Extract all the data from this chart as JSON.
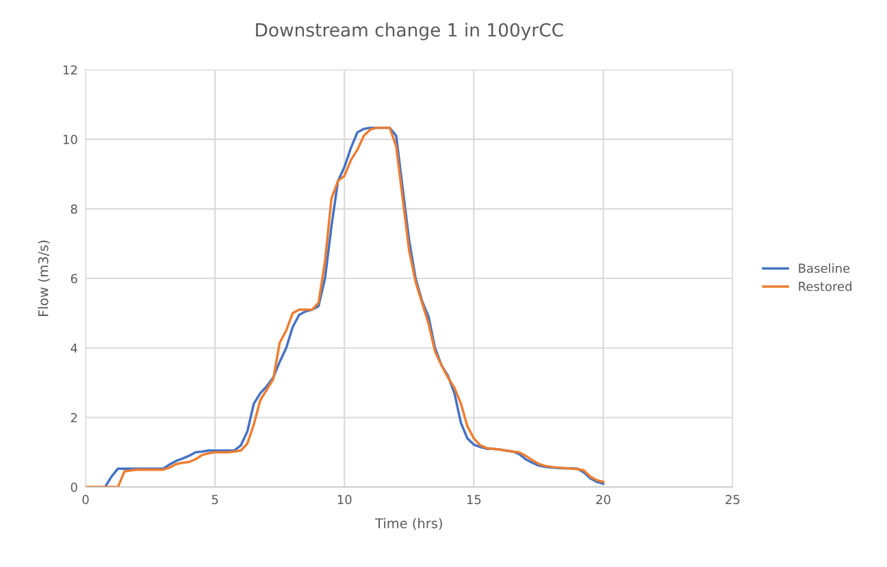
{
  "chart_data": {
    "type": "line",
    "title": "Downstream change 1 in 100yrCC",
    "xlabel": "Time (hrs)",
    "ylabel": "Flow (m3/s)",
    "x": [
      0,
      0.25,
      0.5,
      0.75,
      1,
      1.25,
      1.5,
      1.75,
      2,
      2.25,
      2.5,
      2.75,
      3,
      3.25,
      3.5,
      3.75,
      4,
      4.25,
      4.5,
      4.75,
      5,
      5.25,
      5.5,
      5.75,
      6,
      6.25,
      6.5,
      6.75,
      7,
      7.25,
      7.5,
      7.75,
      8,
      8.25,
      8.5,
      8.75,
      9,
      9.25,
      9.5,
      9.75,
      10,
      10.25,
      10.5,
      10.75,
      11,
      11.25,
      11.5,
      11.75,
      12,
      12.25,
      12.5,
      12.75,
      13,
      13.25,
      13.5,
      13.75,
      14,
      14.25,
      14.5,
      14.75,
      15,
      15.25,
      15.5,
      15.75,
      16,
      16.25,
      16.5,
      16.75,
      17,
      17.25,
      17.5,
      17.75,
      18,
      18.25,
      18.5,
      18.75,
      19,
      19.25,
      19.5,
      19.75,
      20
    ],
    "series": [
      {
        "name": "Baseline",
        "color": "#4472c4",
        "values": [
          null,
          null,
          null,
          0,
          0.3,
          0.53,
          0.53,
          0.53,
          0.53,
          0.53,
          0.53,
          0.53,
          0.53,
          0.65,
          0.75,
          0.82,
          0.9,
          1.0,
          1.02,
          1.05,
          1.05,
          1.05,
          1.05,
          1.05,
          1.2,
          1.6,
          2.4,
          2.7,
          2.9,
          3.15,
          3.6,
          4.0,
          4.6,
          4.95,
          5.05,
          5.1,
          5.2,
          6.0,
          7.5,
          8.8,
          9.2,
          9.75,
          10.2,
          10.3,
          10.33,
          10.33,
          10.33,
          10.33,
          10.1,
          8.6,
          7.1,
          6.0,
          5.35,
          4.9,
          4.0,
          3.5,
          3.2,
          2.7,
          1.85,
          1.4,
          1.22,
          1.15,
          1.1,
          1.1,
          1.08,
          1.05,
          1.02,
          0.95,
          0.8,
          0.7,
          0.62,
          0.58,
          0.56,
          0.55,
          0.54,
          0.54,
          0.53,
          0.42,
          0.25,
          0.15,
          0.1
        ]
      },
      {
        "name": "Restored",
        "color": "#ed7d31",
        "values": [
          0,
          0,
          0,
          0,
          0,
          0,
          0.45,
          0.48,
          0.5,
          0.5,
          0.5,
          0.5,
          0.5,
          0.56,
          0.66,
          0.7,
          0.72,
          0.8,
          0.92,
          0.97,
          1.0,
          1.0,
          1.0,
          1.02,
          1.05,
          1.25,
          1.8,
          2.5,
          2.8,
          3.1,
          4.15,
          4.5,
          5.0,
          5.1,
          5.1,
          5.1,
          5.3,
          6.5,
          8.3,
          8.8,
          8.95,
          9.4,
          9.7,
          10.1,
          10.28,
          10.33,
          10.33,
          10.33,
          9.8,
          8.3,
          6.8,
          5.9,
          5.3,
          4.7,
          3.9,
          3.5,
          3.15,
          2.85,
          2.4,
          1.75,
          1.4,
          1.2,
          1.12,
          1.1,
          1.08,
          1.05,
          1.02,
          1.0,
          0.9,
          0.78,
          0.67,
          0.61,
          0.58,
          0.56,
          0.55,
          0.53,
          0.52,
          0.48,
          0.3,
          0.2,
          0.15
        ]
      }
    ],
    "xlim": [
      0,
      25
    ],
    "xticks": [
      0,
      5,
      10,
      15,
      20,
      25
    ],
    "ylim": [
      0,
      12
    ],
    "yticks": [
      0,
      2,
      4,
      6,
      8,
      10,
      12
    ],
    "grid": true,
    "legend": "right",
    "marker": "none",
    "line_style": "solid"
  }
}
